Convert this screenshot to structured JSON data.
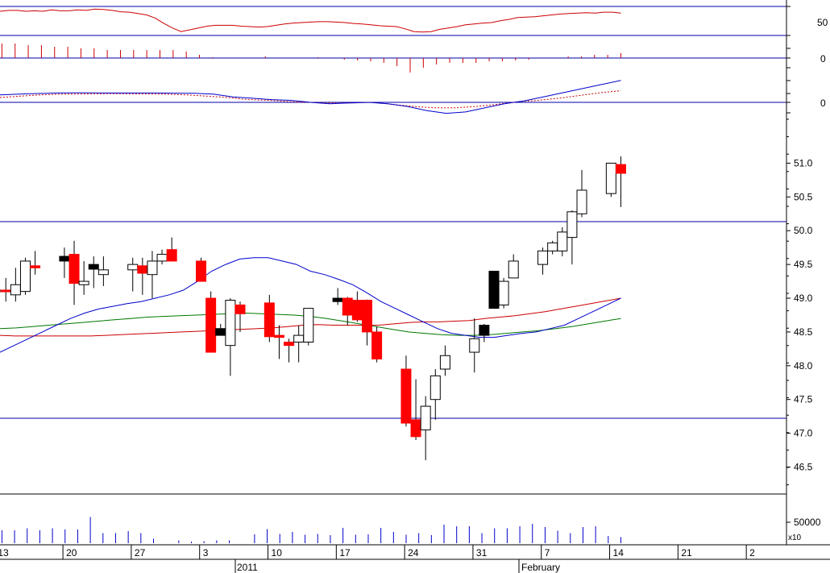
{
  "chart_data": {
    "type": "candlestick",
    "price_axis": {
      "ticks": [
        "46.5",
        "47.0",
        "47.5",
        "48.0",
        "48.5",
        "49.0",
        "49.5",
        "50.0",
        "50.5",
        "51.0"
      ],
      "tick_values": [
        46.5,
        47.0,
        47.5,
        48.0,
        48.5,
        49.0,
        49.5,
        50.0,
        50.5,
        51.0
      ],
      "ylim": [
        46.1,
        51.65
      ],
      "reference_lines": [
        50.0,
        47.2
      ]
    },
    "rsi_axis": {
      "ticks": [
        "50"
      ],
      "reference_lines": [
        70,
        30
      ],
      "ylim": [
        0,
        100
      ]
    },
    "histogram_axis": {
      "ticks": [
        "0"
      ]
    },
    "macd_axis": {
      "ticks": [
        "0"
      ]
    },
    "volume_axis": {
      "ticks": [
        "50000"
      ],
      "multiplier_label": "x10"
    },
    "x_axis": {
      "day_labels": [
        "13",
        "20",
        "27",
        "3",
        "10",
        "17",
        "24",
        "31",
        "7",
        "14",
        "21",
        "2"
      ],
      "month_labels": [
        "2011",
        "February"
      ],
      "start_date": "2011-01-09"
    },
    "colors": {
      "up": "#ffffff",
      "down": "#ff0000",
      "neutral": "#000000",
      "sma_short": "#0000cc",
      "sma_mid": "#cc0000",
      "sma_long": "#007700",
      "rsi": "#cc0000",
      "macd": "#0000cc",
      "signal": "#cc0000",
      "grid_line": "#0000aa",
      "volume": "#0000cc"
    },
    "candles": [
      {
        "date": "2011-01-10",
        "open": 49.1,
        "high": 49.45,
        "low": 48.8,
        "close": 49.12,
        "color": "up"
      },
      {
        "date": "2011-01-11",
        "open": 49.12,
        "high": 49.3,
        "low": 48.95,
        "close": 49.12,
        "color": "down"
      },
      {
        "date": "2011-01-12",
        "open": 49.05,
        "high": 49.45,
        "low": 48.95,
        "close": 49.2,
        "color": "up"
      },
      {
        "date": "2011-01-13",
        "open": 49.1,
        "high": 49.6,
        "low": 49.05,
        "close": 49.55,
        "color": "up"
      },
      {
        "date": "2011-01-14",
        "open": 49.48,
        "high": 49.7,
        "low": 49.35,
        "close": 49.45,
        "color": "down"
      },
      {
        "date": "2011-01-17",
        "open": 49.62,
        "high": 49.75,
        "low": 49.3,
        "close": 49.55,
        "color": "neutral"
      },
      {
        "date": "2011-01-18",
        "open": 49.65,
        "high": 49.85,
        "low": 48.9,
        "close": 49.22,
        "color": "down"
      },
      {
        "date": "2011-01-19",
        "open": 49.2,
        "high": 49.55,
        "low": 49.05,
        "close": 49.25,
        "color": "up"
      },
      {
        "date": "2011-01-20",
        "open": 49.5,
        "high": 49.62,
        "low": 49.15,
        "close": 49.43,
        "color": "neutral"
      },
      {
        "date": "2011-01-21",
        "open": 49.35,
        "high": 49.62,
        "low": 49.18,
        "close": 49.42,
        "color": "up"
      },
      {
        "date": "2011-01-24",
        "open": 49.42,
        "high": 49.6,
        "low": 49.1,
        "close": 49.5,
        "color": "up"
      },
      {
        "date": "2011-01-25",
        "open": 49.48,
        "high": 49.6,
        "low": 49.05,
        "close": 49.37,
        "color": "down"
      },
      {
        "date": "2011-01-26",
        "open": 49.35,
        "high": 49.7,
        "low": 49.0,
        "close": 49.55,
        "color": "up"
      },
      {
        "date": "2011-01-27",
        "open": 49.55,
        "high": 49.72,
        "low": 49.5,
        "close": 49.65,
        "color": "up"
      },
      {
        "date": "2011-01-28",
        "open": 49.72,
        "high": 49.9,
        "low": 49.55,
        "close": 49.55,
        "color": "down"
      },
      {
        "date": "2011-01-31",
        "open": 49.55,
        "high": 49.6,
        "low": 49.25,
        "close": 49.25,
        "color": "down"
      },
      {
        "date": "2011-02-01",
        "open": 49.0,
        "high": 49.1,
        "low": 48.2,
        "close": 48.2,
        "color": "down"
      },
      {
        "date": "2011-02-02",
        "open": 48.55,
        "high": 48.62,
        "low": 48.45,
        "close": 48.45,
        "color": "neutral"
      },
      {
        "date": "2011-02-03",
        "open": 48.3,
        "high": 49.0,
        "low": 47.85,
        "close": 48.97,
        "color": "up"
      },
      {
        "date": "2011-02-04",
        "open": 48.9,
        "high": 48.95,
        "low": 48.5,
        "close": 48.77,
        "color": "down"
      },
      {
        "date": "2011-02-07",
        "open": 48.93,
        "high": 49.05,
        "low": 48.35,
        "close": 48.43,
        "color": "down"
      },
      {
        "date": "2011-02-08",
        "open": 48.45,
        "high": 48.6,
        "low": 48.1,
        "close": 48.42,
        "color": "down"
      },
      {
        "date": "2011-02-09",
        "open": 48.35,
        "high": 48.4,
        "low": 48.05,
        "close": 48.3,
        "color": "down"
      },
      {
        "date": "2011-02-10",
        "open": 48.35,
        "high": 48.6,
        "low": 48.05,
        "close": 48.45,
        "color": "up"
      },
      {
        "date": "2011-02-11",
        "open": 48.35,
        "high": 48.85,
        "low": 48.3,
        "close": 48.85,
        "color": "up"
      },
      {
        "date": "2011-02-14",
        "open": 49.0,
        "high": 49.15,
        "low": 48.9,
        "close": 48.95,
        "color": "neutral"
      },
      {
        "date": "2011-02-15",
        "open": 49.0,
        "high": 49.02,
        "low": 48.6,
        "close": 48.75,
        "color": "down"
      },
      {
        "date": "2011-02-16",
        "open": 48.97,
        "high": 49.1,
        "low": 48.65,
        "close": 48.68,
        "color": "down"
      },
      {
        "date": "2011-02-17",
        "open": 48.97,
        "high": 48.98,
        "low": 48.3,
        "close": 48.5,
        "color": "down"
      },
      {
        "date": "2011-02-18",
        "open": 48.5,
        "high": 48.58,
        "low": 48.05,
        "close": 48.1,
        "color": "down"
      },
      {
        "date": "2011-02-21",
        "open": 47.95,
        "high": 48.15,
        "low": 47.1,
        "close": 47.15,
        "color": "down"
      },
      {
        "date": "2011-02-22",
        "open": 47.2,
        "high": 47.8,
        "low": 46.9,
        "close": 46.95,
        "color": "down"
      },
      {
        "date": "2011-02-23",
        "open": 47.05,
        "high": 47.55,
        "low": 46.6,
        "close": 47.4,
        "color": "up"
      },
      {
        "date": "2011-02-24",
        "open": 47.5,
        "high": 47.95,
        "low": 47.2,
        "close": 47.85,
        "color": "up"
      },
      {
        "date": "2011-02-25",
        "open": 47.95,
        "high": 48.3,
        "low": 47.85,
        "close": 48.15,
        "color": "up"
      },
      {
        "date": "2011-02-28",
        "open": 48.2,
        "high": 48.7,
        "low": 47.9,
        "close": 48.4,
        "color": "up"
      },
      {
        "date": "2011-03-01",
        "open": 48.45,
        "high": 48.62,
        "low": 48.35,
        "close": 48.6,
        "color": "neutral"
      },
      {
        "date": "2011-03-02",
        "open": 49.4,
        "high": 49.4,
        "low": 48.85,
        "close": 48.85,
        "color": "neutral"
      },
      {
        "date": "2011-03-03",
        "open": 48.9,
        "high": 49.3,
        "low": 48.85,
        "close": 49.25,
        "color": "up"
      },
      {
        "date": "2011-03-04",
        "open": 49.3,
        "high": 49.65,
        "low": 49.3,
        "close": 49.55,
        "color": "up"
      },
      {
        "date": "2011-03-07",
        "open": 49.5,
        "high": 49.75,
        "low": 49.35,
        "close": 49.7,
        "color": "up"
      },
      {
        "date": "2011-03-08",
        "open": 49.7,
        "high": 49.85,
        "low": 49.65,
        "close": 49.82,
        "color": "up"
      },
      {
        "date": "2011-03-09",
        "open": 49.7,
        "high": 50.05,
        "low": 49.62,
        "close": 49.98,
        "color": "up"
      },
      {
        "date": "2011-03-10",
        "open": 49.9,
        "high": 50.3,
        "low": 49.5,
        "close": 50.28,
        "color": "up"
      },
      {
        "date": "2011-03-11",
        "open": 50.25,
        "high": 50.9,
        "low": 50.2,
        "close": 50.6,
        "color": "up"
      },
      {
        "date": "2011-03-14",
        "open": 50.55,
        "high": 51.0,
        "low": 50.5,
        "close": 51.0,
        "color": "up"
      },
      {
        "date": "2011-03-15",
        "open": 50.98,
        "high": 51.1,
        "low": 50.35,
        "close": 50.85,
        "color": "down"
      }
    ],
    "sma_short": [
      48.2,
      48.3,
      48.4,
      48.5,
      48.6,
      48.7,
      48.78,
      48.84,
      48.88,
      48.92,
      48.95,
      49.0,
      49.05,
      49.12,
      49.25,
      49.4,
      49.5,
      49.58,
      49.6,
      49.6,
      49.55,
      49.5,
      49.4,
      49.35,
      49.28,
      49.2,
      49.08,
      48.95,
      48.85,
      48.75,
      48.65,
      48.55,
      48.48,
      48.45,
      48.42,
      48.42,
      48.45,
      48.48,
      48.5,
      48.55,
      48.6,
      48.7,
      48.8,
      48.9,
      49.0
    ],
    "sma_mid": [
      48.45,
      48.44,
      48.44,
      48.44,
      48.44,
      48.44,
      48.44,
      48.45,
      48.46,
      48.47,
      48.48,
      48.49,
      48.5,
      48.51,
      48.52,
      48.53,
      48.54,
      48.55,
      48.56,
      48.58,
      48.6,
      48.61,
      48.6,
      48.6,
      48.6,
      48.6,
      48.62,
      48.64,
      48.65,
      48.65,
      48.66,
      48.67,
      48.7,
      48.72,
      48.74,
      48.77,
      48.8,
      48.84,
      48.88,
      48.92,
      48.96,
      49.0
    ],
    "sma_long": [
      48.55,
      48.56,
      48.58,
      48.6,
      48.62,
      48.64,
      48.66,
      48.68,
      48.7,
      48.72,
      48.73,
      48.74,
      48.75,
      48.76,
      48.77,
      48.78,
      48.77,
      48.76,
      48.75,
      48.73,
      48.7,
      48.66,
      48.62,
      48.58,
      48.54,
      48.5,
      48.48,
      48.46,
      48.45,
      48.45,
      48.46,
      48.48,
      48.5,
      48.52,
      48.55,
      48.58,
      48.62,
      48.66,
      48.7
    ],
    "rsi": [
      75,
      77,
      77,
      75,
      76,
      75,
      78,
      76,
      76,
      78,
      77,
      80,
      79,
      77,
      74,
      73,
      70,
      67,
      60,
      48,
      38,
      30,
      34,
      38,
      42,
      44,
      44,
      44,
      42,
      41,
      40,
      41,
      44,
      47,
      49,
      50,
      51,
      52,
      52,
      51,
      50,
      48,
      47,
      45,
      43,
      42,
      41,
      36,
      30,
      29,
      30,
      35,
      38,
      41,
      45,
      47,
      49,
      50,
      54,
      57,
      61,
      62,
      63,
      65,
      67,
      69,
      70,
      71,
      72,
      71,
      73,
      73,
      71
    ],
    "histogram": [
      0.9,
      0.9,
      0.8,
      0.8,
      0.7,
      0.7,
      0.6,
      0.6,
      0.5,
      0.5,
      0.5,
      0.5,
      0.5,
      0.5,
      0.4,
      0.2,
      0.05,
      0.0,
      0.0,
      0.0,
      0.1,
      0.0,
      0.0,
      0.0,
      0.05,
      0.0,
      -0.1,
      -0.15,
      -0.2,
      -0.3,
      -0.5,
      -0.9,
      -0.6,
      -0.4,
      -0.3,
      -0.3,
      -0.3,
      -0.2,
      -0.2,
      -0.15,
      -0.1,
      0.0,
      0.0,
      0.1,
      0.1,
      0.2,
      0.2,
      0.3
    ],
    "macd": [
      0.55,
      0.6,
      0.65,
      0.68,
      0.7,
      0.69,
      0.68,
      0.68,
      0.68,
      0.67,
      0.66,
      0.6,
      0.4,
      0.3,
      0.2,
      0.15,
      0.0,
      -0.1,
      -0.05,
      0.0,
      -0.1,
      -0.3,
      -0.6,
      -0.8,
      -0.7,
      -0.4,
      -0.1,
      0.1,
      0.4,
      0.7,
      1.0,
      1.3,
      1.6
    ],
    "signal": [
      0.35,
      0.45,
      0.55,
      0.6,
      0.62,
      0.63,
      0.63,
      0.62,
      0.6,
      0.55,
      0.45,
      0.35,
      0.2,
      0.15,
      0.05,
      0.0,
      -0.05,
      -0.05,
      0.0,
      -0.15,
      -0.3,
      -0.4,
      -0.4,
      -0.3,
      -0.15,
      0.05,
      0.15,
      0.3,
      0.5,
      0.7,
      0.85
    ],
    "volume": [
      32,
      32,
      37,
      32,
      37,
      34,
      34,
      65,
      25,
      25,
      30,
      25,
      11,
      0,
      7,
      4,
      5,
      7,
      7,
      0,
      22,
      35,
      23,
      28,
      21,
      23,
      20,
      38,
      21,
      22,
      38,
      28,
      21,
      25,
      20,
      46,
      42,
      42,
      25,
      37,
      37,
      42,
      48,
      40,
      31,
      25,
      40,
      42,
      18,
      15
    ]
  }
}
